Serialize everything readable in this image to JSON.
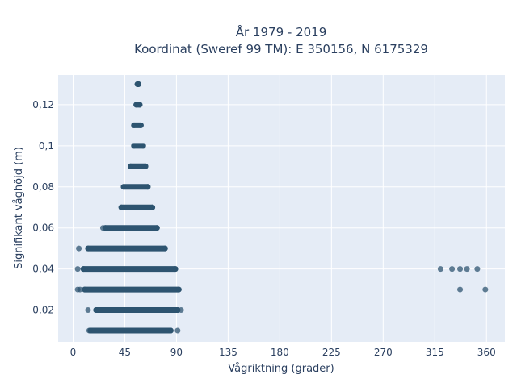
{
  "chart_data": {
    "type": "scatter",
    "title_lines": [
      "År 1979 - 2019",
      "Koordinat (Sweref 99 TM): E 350156, N 6175329"
    ],
    "xlabel": "Vågriktning (grader)",
    "ylabel": "Signifikant våghöjd (m)",
    "xlim": [
      -13,
      376
    ],
    "ylim": [
      0.0045,
      0.1345
    ],
    "xticks": [
      0,
      45,
      90,
      135,
      180,
      225,
      270,
      315,
      360
    ],
    "xtick_labels": [
      "0",
      "45",
      "90",
      "135",
      "180",
      "225",
      "270",
      "315",
      "360"
    ],
    "yticks": [
      0.02,
      0.04,
      0.06,
      0.08,
      0.1,
      0.12
    ],
    "ytick_labels": [
      "0,02",
      "0,04",
      "0,06",
      "0,08",
      "0,1",
      "0,12"
    ],
    "grid": true,
    "marker_color": "#2e5470",
    "plot_background": "#e5ecf6",
    "rows": [
      {
        "y": 0.01,
        "x_min": 15,
        "x_max": 85,
        "outliers": [
          14,
          91
        ]
      },
      {
        "y": 0.02,
        "x_min": 20,
        "x_max": 91,
        "outliers": [
          13,
          94
        ]
      },
      {
        "y": 0.03,
        "x_min": 10,
        "x_max": 92,
        "outliers": [
          4,
          6,
          337,
          359
        ]
      },
      {
        "y": 0.04,
        "x_min": 9,
        "x_max": 89,
        "outliers": [
          4,
          320,
          330,
          337,
          343,
          352
        ]
      },
      {
        "y": 0.05,
        "x_min": 13,
        "x_max": 80,
        "outliers": [
          5
        ]
      },
      {
        "y": 0.06,
        "x_min": 28,
        "x_max": 73,
        "outliers": [
          26
        ]
      },
      {
        "y": 0.07,
        "x_min": 42,
        "x_max": 69,
        "outliers": []
      },
      {
        "y": 0.08,
        "x_min": 44,
        "x_max": 65,
        "outliers": []
      },
      {
        "y": 0.09,
        "x_min": 50,
        "x_max": 63,
        "outliers": []
      },
      {
        "y": 0.1,
        "x_min": 53,
        "x_max": 61,
        "outliers": []
      },
      {
        "y": 0.11,
        "x_min": 53,
        "x_max": 59,
        "outliers": []
      },
      {
        "y": 0.12,
        "x_min": 55,
        "x_max": 58,
        "outliers": []
      },
      {
        "y": 0.13,
        "x_min": 56,
        "x_max": 57,
        "outliers": []
      }
    ]
  }
}
